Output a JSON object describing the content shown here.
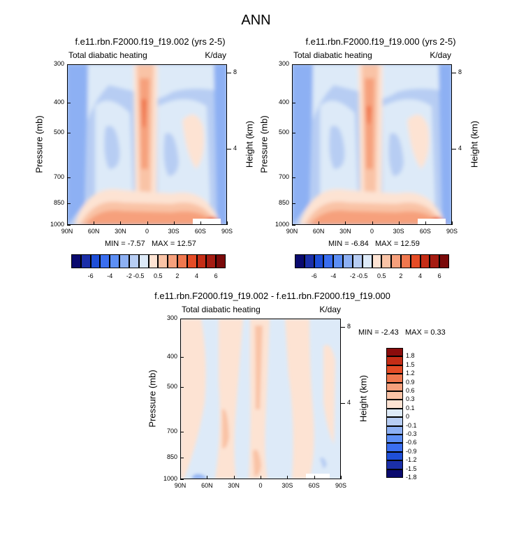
{
  "title": "ANN",
  "field_label": "Total diabatic heating",
  "units": "K/day",
  "panels": [
    {
      "title": "f.e11.rbn.F2000.f19_f19.002 (yrs 2-5)",
      "min_label": "MIN =",
      "min": "-7.57",
      "max_label": "MAX =",
      "max": "12.57"
    },
    {
      "title": "f.e11.rbn.F2000.f19_f19.000 (yrs 2-5)",
      "min_label": "MIN =",
      "min": "-6.84",
      "max_label": "MAX =",
      "max": "12.59"
    },
    {
      "title": "f.e11.rbn.F2000.f19_f19.002 - f.e11.rbn.F2000.f19_f19.000",
      "min_label": "MIN =",
      "min": "-2.43",
      "max_label": "MAX =",
      "max": "0.33"
    }
  ],
  "axes": {
    "ylabel_left": "Pressure (mb)",
    "ylabel_right": "Height (km)",
    "pressure_ticks": [
      "300",
      "400",
      "500",
      "700",
      "850",
      "1000"
    ],
    "height_ticks": [
      "8",
      "4"
    ],
    "lat_ticks": [
      "90N",
      "60N",
      "30N",
      "0",
      "30S",
      "60S",
      "90S"
    ]
  },
  "colors": {
    "main_scale": [
      "#0a0a6e",
      "#1b2fa8",
      "#1f4fd8",
      "#3a6ef0",
      "#5d8ff5",
      "#8db0f3",
      "#b7cdf3",
      "#ddeaf8",
      "#fde3d3",
      "#f9c3a6",
      "#f6a07c",
      "#f0784f",
      "#e54c26",
      "#c52d16",
      "#a51c12",
      "#7a0a0a"
    ],
    "diff_scale": [
      "#0a0a6e",
      "#1b2fa8",
      "#1f4fd8",
      "#3a6ef0",
      "#5d8ff5",
      "#8db0f3",
      "#b7cdf3",
      "#ddeaf8",
      "#fde3d3",
      "#f9c3a6",
      "#f6a07c",
      "#f0784f",
      "#e54c26",
      "#c52d16",
      "#8a0c0c"
    ]
  },
  "chart_data": [
    {
      "type": "heatmap",
      "title": "f.e11.rbn.F2000.f19_f19.002 (yrs 2-5)",
      "variable": "Total diabatic heating",
      "units": "K/day",
      "xlabel": "",
      "ylabel": "Pressure (mb)",
      "ylabel_right": "Height (km)",
      "x_ticks": [
        "90N",
        "60N",
        "30N",
        "0",
        "30S",
        "60S",
        "90S"
      ],
      "y_ticks_pressure": [
        300,
        400,
        500,
        700,
        850,
        1000
      ],
      "y_ticks_height": [
        8,
        4
      ],
      "min": -7.57,
      "max": 12.57,
      "colorbar_labels": [
        "-6",
        "-4",
        "-2",
        "-0.5",
        "0.5",
        "2",
        "4",
        "6"
      ]
    },
    {
      "type": "heatmap",
      "title": "f.e11.rbn.F2000.f19_f19.000 (yrs 2-5)",
      "variable": "Total diabatic heating",
      "units": "K/day",
      "xlabel": "",
      "ylabel": "Pressure (mb)",
      "ylabel_right": "Height (km)",
      "x_ticks": [
        "90N",
        "60N",
        "30N",
        "0",
        "30S",
        "60S",
        "90S"
      ],
      "y_ticks_pressure": [
        300,
        400,
        500,
        700,
        850,
        1000
      ],
      "y_ticks_height": [
        8,
        4
      ],
      "min": -6.84,
      "max": 12.59,
      "colorbar_labels": [
        "-6",
        "-4",
        "-2",
        "-0.5",
        "0.5",
        "2",
        "4",
        "6"
      ]
    },
    {
      "type": "heatmap",
      "title": "f.e11.rbn.F2000.f19_f19.002 - f.e11.rbn.F2000.f19_f19.000",
      "variable": "Total diabatic heating",
      "units": "K/day",
      "xlabel": "",
      "ylabel": "Pressure (mb)",
      "ylabel_right": "Height (km)",
      "x_ticks": [
        "90N",
        "60N",
        "30N",
        "0",
        "30S",
        "60S",
        "90S"
      ],
      "y_ticks_pressure": [
        300,
        400,
        500,
        700,
        850,
        1000
      ],
      "y_ticks_height": [
        8,
        4
      ],
      "min": -2.43,
      "max": 0.33,
      "colorbar_labels": [
        "1.8",
        "1.5",
        "1.2",
        "0.9",
        "0.6",
        "0.3",
        "0.1",
        "0",
        "-0.1",
        "-0.3",
        "-0.6",
        "-0.9",
        "-1.2",
        "-1.5",
        "-1.8"
      ]
    }
  ]
}
